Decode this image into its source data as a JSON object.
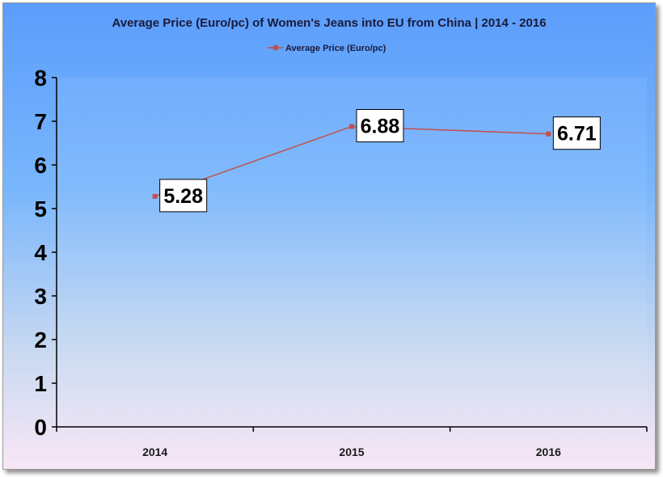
{
  "chart_data": {
    "type": "line",
    "title": "Average Price (Euro/pc) of Women's Jeans into EU from China | 2014 - 2016",
    "categories": [
      "2014",
      "2015",
      "2016"
    ],
    "series": [
      {
        "name": "Average Price (Euro/pc)",
        "values": [
          5.28,
          6.88,
          6.71
        ],
        "color": "#c0504d"
      }
    ],
    "data_labels": [
      "5.28",
      "6.88",
      "6.71"
    ],
    "ylim": [
      0,
      8
    ],
    "yticks": [
      "0",
      "1",
      "2",
      "3",
      "4",
      "5",
      "6",
      "7",
      "8"
    ],
    "legend_position": "top",
    "grid": false
  }
}
